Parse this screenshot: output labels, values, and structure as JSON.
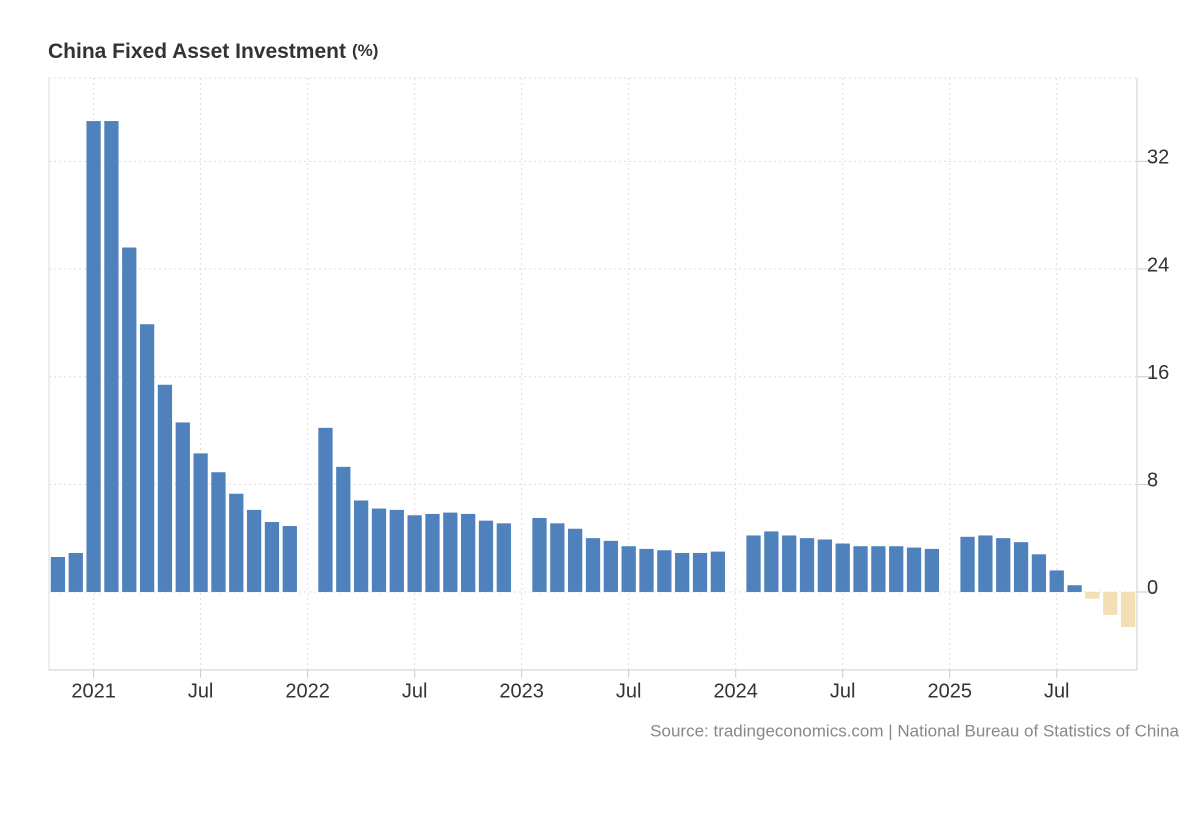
{
  "chart_data": {
    "type": "bar",
    "title": "China Fixed Asset Investment",
    "unit": "(%)",
    "source": "Source: tradingeconomics.com | National Bureau of Statistics of China",
    "categories": [
      null,
      null,
      "2021",
      null,
      null,
      null,
      null,
      null,
      "Jul",
      null,
      null,
      null,
      null,
      null,
      "2022",
      null,
      null,
      null,
      null,
      null,
      "Jul",
      null,
      null,
      null,
      null,
      null,
      "2023",
      null,
      null,
      null,
      null,
      null,
      "Jul",
      null,
      null,
      null,
      null,
      null,
      "2024",
      null,
      null,
      null,
      null,
      null,
      "Jul",
      null,
      null,
      null,
      null,
      null,
      "2025",
      null,
      null,
      null,
      null,
      null,
      "Jul",
      null,
      null,
      null,
      null
    ],
    "values": [
      2.6,
      2.9,
      35.0,
      35.0,
      25.6,
      19.9,
      15.4,
      12.6,
      10.3,
      8.9,
      7.3,
      6.1,
      5.2,
      4.9,
      null,
      12.2,
      9.3,
      6.8,
      6.2,
      6.1,
      5.7,
      5.8,
      5.9,
      5.8,
      5.3,
      5.1,
      null,
      5.5,
      5.1,
      4.7,
      4.0,
      3.8,
      3.4,
      3.2,
      3.1,
      2.9,
      2.9,
      3.0,
      null,
      4.2,
      4.5,
      4.2,
      4.0,
      3.9,
      3.6,
      3.4,
      3.4,
      3.4,
      3.3,
      3.2,
      null,
      4.1,
      4.2,
      4.0,
      3.7,
      2.8,
      1.6,
      0.5,
      -0.5,
      -1.7,
      -2.6
    ],
    "color": "#4f81bd",
    "negative_color": "#f3deb5",
    "ylim": [
      -5.8,
      38.2
    ],
    "yticks": [
      0,
      8,
      16,
      24,
      32
    ],
    "grid": true
  }
}
